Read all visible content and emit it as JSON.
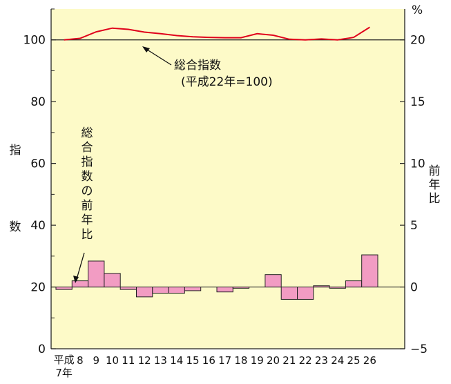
{
  "chart_data": {
    "type": "bar+line",
    "categories": [
      "平成7年",
      "8",
      "9",
      "10",
      "11",
      "12",
      "13",
      "14",
      "15",
      "16",
      "17",
      "18",
      "19",
      "20",
      "21",
      "22",
      "23",
      "24",
      "25",
      "26"
    ],
    "first_category_lines": [
      "平成",
      "7年"
    ],
    "left_axis": {
      "label_chars": [
        "指",
        "数"
      ],
      "ylim": [
        0,
        110
      ],
      "ticks": [
        "0",
        "20",
        "40",
        "60",
        "80",
        "100"
      ],
      "tick_values": [
        0,
        20,
        40,
        60,
        80,
        100
      ]
    },
    "right_axis": {
      "label_chars": [
        "前",
        "年",
        "比"
      ],
      "unit": "%",
      "ylim": [
        -5,
        22.5
      ],
      "ticks": [
        "−5",
        "0",
        "5",
        "10",
        "15",
        "20"
      ],
      "tick_values": [
        -5,
        0,
        5,
        10,
        15,
        20
      ]
    },
    "series": [
      {
        "name": "総合指数（平成22年=100）",
        "type": "line",
        "axis": "left",
        "values": [
          100.0,
          100.5,
          102.6,
          103.8,
          103.4,
          102.5,
          102.0,
          101.4,
          101.0,
          100.8,
          100.7,
          100.7,
          102.0,
          101.5,
          100.2,
          100.0,
          100.3,
          100.0,
          100.8,
          104.1
        ]
      },
      {
        "name": "総合指数の前年比",
        "type": "bar",
        "axis": "right",
        "values": [
          -0.2,
          0.5,
          2.1,
          1.1,
          -0.2,
          -0.8,
          -0.5,
          -0.5,
          -0.3,
          0.0,
          -0.4,
          -0.1,
          0.0,
          1.0,
          -1.0,
          -1.0,
          0.1,
          -0.1,
          0.5,
          2.6
        ]
      }
    ],
    "annotations": {
      "line_label_1": "総合指数",
      "line_label_2": "(平成22年=100)",
      "bar_label_chars": [
        "総",
        "合",
        "指",
        "数",
        "の",
        "前",
        "年",
        "比"
      ]
    },
    "colors": {
      "plot_background": "#fdfac8",
      "line": "#e0001b",
      "bar_fill": "#f29cc3",
      "bar_stroke": "#222222"
    },
    "grid": false
  }
}
